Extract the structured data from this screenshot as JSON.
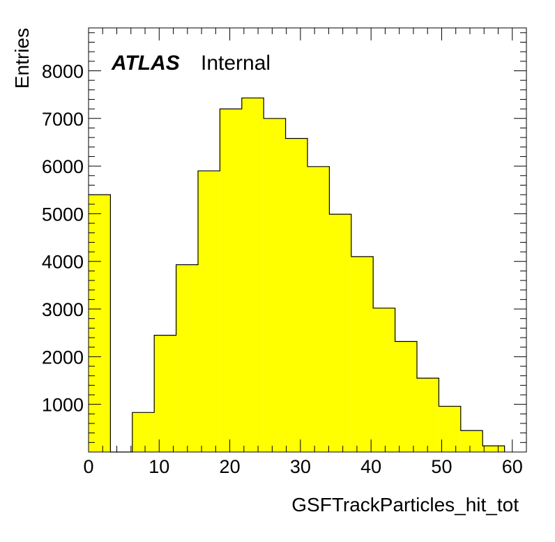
{
  "chart_data": {
    "type": "bar",
    "xlabel": "GSFTrackParticles_hit_tot",
    "ylabel": "Entries",
    "annotation": {
      "experiment": "ATLAS",
      "status": "Internal"
    },
    "xlim": [
      0,
      62
    ],
    "ylim": [
      0,
      8900
    ],
    "x_ticks": [
      0,
      10,
      20,
      30,
      40,
      50,
      60
    ],
    "y_ticks": [
      1000,
      2000,
      3000,
      4000,
      5000,
      6000,
      7000,
      8000
    ],
    "fill_color": "#ffff00",
    "edge_color": "#000000",
    "bin_edges": [
      0,
      3.1,
      6.2,
      9.3,
      12.4,
      15.5,
      18.6,
      21.7,
      24.8,
      27.9,
      31.0,
      34.1,
      37.2,
      40.3,
      43.4,
      46.5,
      49.6,
      52.7,
      55.8,
      58.9
    ],
    "values": [
      5400,
      0,
      830,
      2450,
      3930,
      5900,
      7200,
      7430,
      7000,
      6580,
      5990,
      4990,
      4100,
      3020,
      2320,
      1550,
      960,
      450,
      130
    ],
    "grid": false,
    "style": "step-filled histogram"
  }
}
